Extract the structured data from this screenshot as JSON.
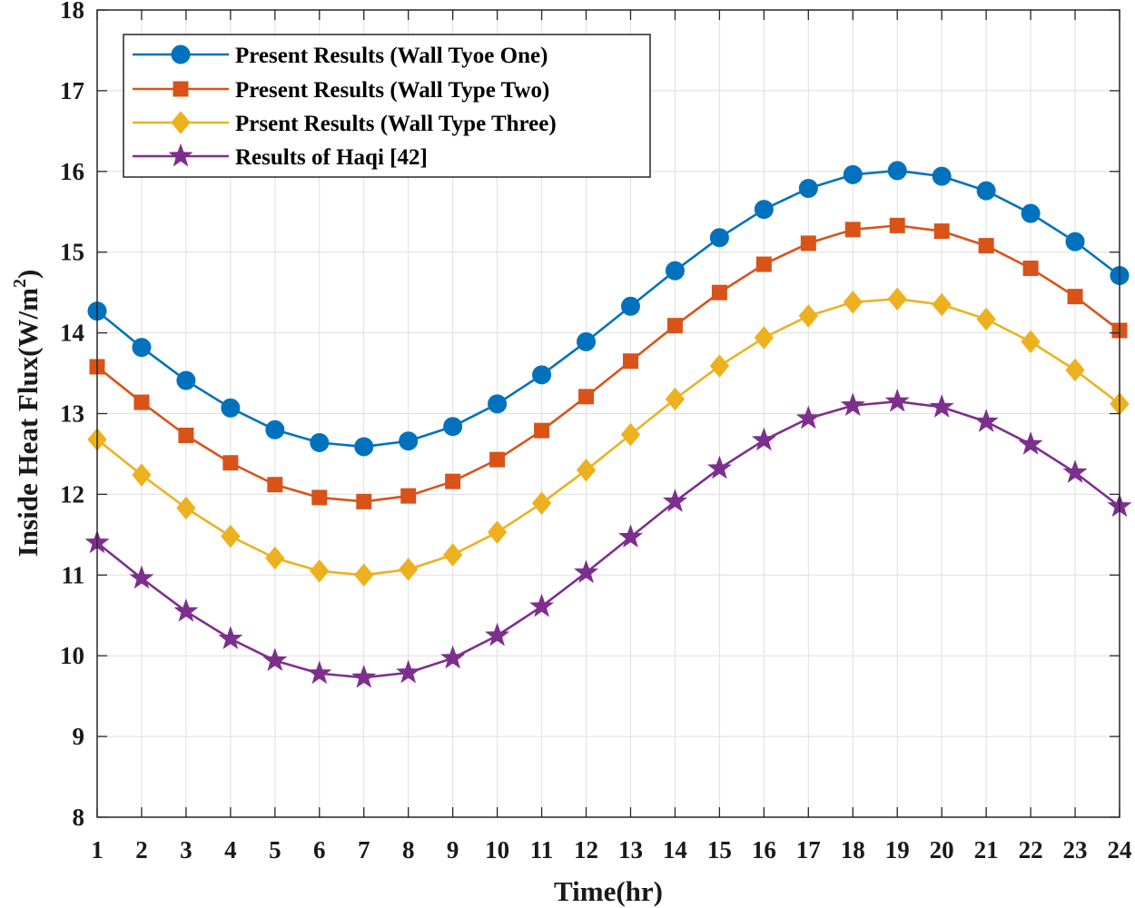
{
  "chart_data": {
    "type": "line",
    "title": "",
    "xlabel": "Time(hr)",
    "ylabel_main": "Inside Heat Flux(W/m",
    "ylabel_sup": "2",
    "ylabel_close": ")",
    "xlim": [
      1,
      24
    ],
    "ylim": [
      8,
      18
    ],
    "grid": true,
    "legend_position": "top-left",
    "x": [
      1,
      2,
      3,
      4,
      5,
      6,
      7,
      8,
      9,
      10,
      11,
      12,
      13,
      14,
      15,
      16,
      17,
      18,
      19,
      20,
      21,
      22,
      23,
      24
    ],
    "x_tick_labels": [
      "1",
      "2",
      "3",
      "4",
      "5",
      "6",
      "7",
      "8",
      "9",
      "10",
      "11",
      "12",
      "13",
      "14",
      "15",
      "16",
      "17",
      "18",
      "19",
      "20",
      "21",
      "22",
      "23",
      "24"
    ],
    "y_ticks": [
      8,
      9,
      10,
      11,
      12,
      13,
      14,
      15,
      16,
      17,
      18
    ],
    "y_tick_labels": [
      "8",
      "9",
      "10",
      "11",
      "12",
      "13",
      "14",
      "15",
      "16",
      "17",
      "18"
    ],
    "series": [
      {
        "name": "Present Results (Wall Tyoe One)",
        "color": "#0072BD",
        "marker": "circle",
        "values": [
          14.27,
          13.82,
          13.41,
          13.07,
          12.8,
          12.64,
          12.59,
          12.66,
          12.84,
          13.12,
          13.48,
          13.89,
          14.33,
          14.77,
          15.18,
          15.53,
          15.79,
          15.96,
          16.01,
          15.94,
          15.76,
          15.48,
          15.13,
          14.71
        ]
      },
      {
        "name": "Present Results (Wall Type Two)",
        "color": "#D95319",
        "marker": "square",
        "values": [
          13.58,
          13.14,
          12.73,
          12.39,
          12.12,
          11.96,
          11.91,
          11.98,
          12.16,
          12.43,
          12.79,
          13.21,
          13.65,
          14.09,
          14.5,
          14.85,
          15.11,
          15.28,
          15.33,
          15.26,
          15.08,
          14.8,
          14.45,
          14.03
        ]
      },
      {
        "name": "Prsent Results (Wall Type Three)",
        "color": "#EDB120",
        "marker": "diamond",
        "values": [
          12.68,
          12.24,
          11.83,
          11.48,
          11.21,
          11.05,
          11.0,
          11.07,
          11.25,
          11.53,
          11.89,
          12.3,
          12.74,
          13.18,
          13.59,
          13.94,
          14.21,
          14.38,
          14.42,
          14.35,
          14.17,
          13.89,
          13.54,
          13.12
        ]
      },
      {
        "name": "Results of Haqi [42]",
        "color": "#7E2F8E",
        "marker": "star",
        "values": [
          11.4,
          10.96,
          10.55,
          10.21,
          9.94,
          9.78,
          9.73,
          9.79,
          9.97,
          10.25,
          10.61,
          11.03,
          11.47,
          11.91,
          12.32,
          12.67,
          12.94,
          13.1,
          13.15,
          13.08,
          12.9,
          12.62,
          12.27,
          11.85
        ]
      }
    ]
  }
}
